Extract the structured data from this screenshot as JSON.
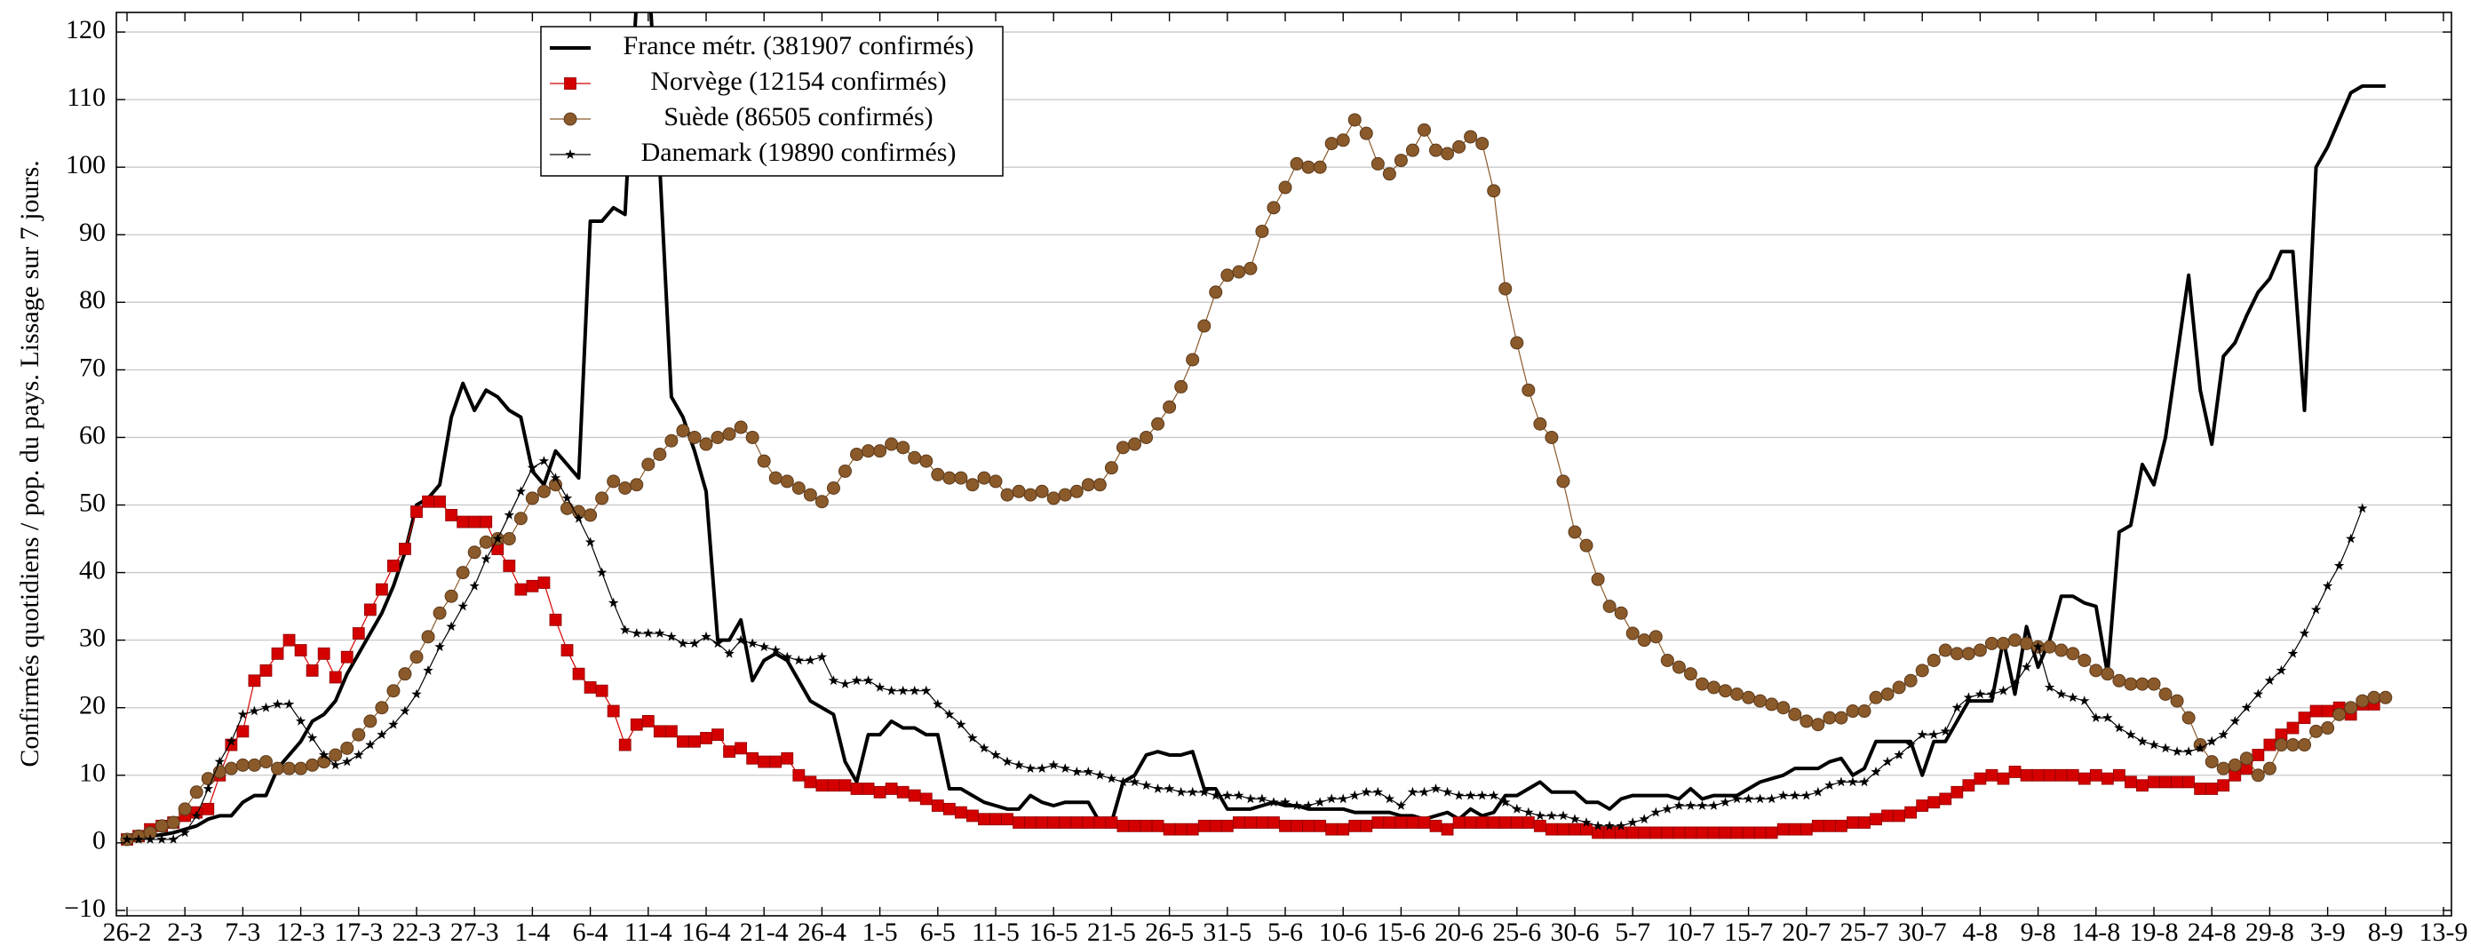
{
  "chart_data": {
    "type": "line",
    "y_label": "Confirmés quotidiens / pop. du pays. Lissage sur 7 jours.",
    "categories": [
      "26-2",
      null,
      null,
      null,
      null,
      "2-3",
      null,
      null,
      null,
      null,
      "7-3",
      null,
      null,
      null,
      null,
      "12-3",
      null,
      null,
      null,
      null,
      "17-3",
      null,
      null,
      null,
      null,
      "22-3",
      null,
      null,
      null,
      null,
      "27-3",
      null,
      null,
      null,
      null,
      "1-4",
      null,
      null,
      null,
      null,
      "6-4",
      null,
      null,
      null,
      null,
      "11-4",
      null,
      null,
      null,
      null,
      "16-4",
      null,
      null,
      null,
      null,
      "21-4",
      null,
      null,
      null,
      null,
      "26-4",
      null,
      null,
      null,
      null,
      "1-5",
      null,
      null,
      null,
      null,
      "6-5",
      null,
      null,
      null,
      null,
      "11-5",
      null,
      null,
      null,
      null,
      "16-5",
      null,
      null,
      null,
      null,
      "21-5",
      null,
      null,
      null,
      null,
      "26-5",
      null,
      null,
      null,
      null,
      "31-5",
      null,
      null,
      null,
      null,
      "5-6",
      null,
      null,
      null,
      null,
      "10-6",
      null,
      null,
      null,
      null,
      "15-6",
      null,
      null,
      null,
      null,
      "20-6",
      null,
      null,
      null,
      null,
      "25-6",
      null,
      null,
      null,
      null,
      "30-6",
      null,
      null,
      null,
      null,
      "5-7",
      null,
      null,
      null,
      null,
      "10-7",
      null,
      null,
      null,
      null,
      "15-7",
      null,
      null,
      null,
      null,
      "20-7",
      null,
      null,
      null,
      null,
      "25-7",
      null,
      null,
      null,
      null,
      "30-7",
      null,
      null,
      null,
      null,
      "4-8",
      null,
      null,
      null,
      null,
      "9-8",
      null,
      null,
      null,
      null,
      "14-8",
      null,
      null,
      null,
      null,
      "19-8",
      null,
      null,
      null,
      null,
      "24-8",
      null,
      null,
      null,
      null,
      "29-8",
      null,
      null,
      null,
      null,
      "3-9",
      null,
      null,
      null,
      null,
      "8-9",
      null,
      null,
      null,
      null,
      "13-9"
    ],
    "series": [
      {
        "name": "France métr. (381907 confirmés)",
        "color": "#000000",
        "marker": "none",
        "values": [
          0.5,
          0.7,
          1,
          1.2,
          1.5,
          2,
          2.5,
          3.5,
          4,
          4,
          6,
          7,
          7,
          11,
          13,
          15,
          18,
          19,
          21,
          25,
          28,
          31,
          34,
          38,
          43,
          50,
          51,
          53,
          63,
          68,
          64,
          67,
          66,
          64,
          63,
          55,
          53,
          58,
          56,
          54,
          92,
          92,
          94,
          93,
          125,
          130,
          100,
          66,
          63,
          58,
          52,
          30,
          30,
          33,
          24,
          27,
          28,
          27,
          24,
          21,
          20,
          19,
          12,
          9,
          16,
          16,
          18,
          17,
          17,
          16,
          16,
          8,
          8,
          7,
          6,
          5.5,
          5,
          5,
          7,
          6,
          5.5,
          6,
          6,
          6,
          3,
          3,
          9,
          10,
          13,
          13.5,
          13,
          13,
          13.5,
          8,
          8,
          5,
          5,
          5,
          5.5,
          6,
          5.5,
          5.5,
          5,
          5,
          5,
          5,
          4.5,
          4.5,
          4.5,
          4.5,
          4,
          4,
          3.5,
          4,
          4.5,
          3.5,
          5,
          4,
          4.5,
          7,
          7,
          8,
          9,
          7.5,
          7.5,
          7.5,
          6,
          6,
          5,
          6.5,
          7,
          7,
          7,
          7,
          6.5,
          8,
          6.5,
          7,
          7,
          7,
          8,
          9,
          9.5,
          10,
          11,
          11,
          11,
          12,
          12.5,
          10,
          11,
          15,
          15,
          15,
          15,
          10,
          15,
          15,
          18,
          21,
          21,
          21,
          30,
          22,
          32,
          26,
          30,
          36.5,
          36.5,
          35.5,
          35,
          25,
          46,
          47,
          56,
          53,
          60,
          72,
          84,
          67,
          59,
          72,
          74,
          78,
          81.5,
          83.5,
          87.5,
          87.5,
          64,
          100,
          103,
          107,
          111,
          112,
          112,
          112,
          null,
          null,
          null,
          null,
          null
        ]
      },
      {
        "name": "Norvège (12154 confirmés)",
        "color": "#d40000",
        "marker": "square",
        "values": [
          0.5,
          1,
          2,
          2.5,
          3,
          4,
          4.5,
          5,
          10,
          14.5,
          16.5,
          24,
          25.5,
          28,
          30,
          28.5,
          25.5,
          28,
          24.5,
          27.5,
          31,
          34.5,
          37.5,
          41,
          43.5,
          49,
          50.5,
          50.5,
          48.5,
          47.5,
          47.5,
          47.5,
          43.5,
          41,
          37.5,
          38,
          38.5,
          33,
          28.5,
          25,
          23,
          22.5,
          19.5,
          14.5,
          17.5,
          18,
          16.5,
          16.5,
          15,
          15,
          15.5,
          16,
          13.5,
          14,
          12.5,
          12,
          12,
          12.5,
          10,
          9,
          8.5,
          8.5,
          8.5,
          8,
          8,
          7.5,
          8,
          7.5,
          7,
          6.5,
          5.5,
          5,
          4.5,
          4,
          3.5,
          3.5,
          3.5,
          3,
          3,
          3,
          3,
          3,
          3,
          3,
          3,
          3,
          2.5,
          2.5,
          2.5,
          2.5,
          2,
          2,
          2,
          2.5,
          2.5,
          2.5,
          3,
          3,
          3,
          3,
          2.5,
          2.5,
          2.5,
          2.5,
          2,
          2,
          2.5,
          2.5,
          3,
          3,
          3,
          3,
          3,
          2.5,
          2,
          3,
          3,
          3,
          3,
          3,
          3,
          3,
          2.5,
          2,
          2,
          2,
          2,
          1.5,
          1.5,
          1.5,
          1.5,
          1.5,
          1.5,
          1.5,
          1.5,
          1.5,
          1.5,
          1.5,
          1.5,
          1.5,
          1.5,
          1.5,
          1.5,
          2,
          2,
          2,
          2.5,
          2.5,
          2.5,
          3,
          3,
          3.5,
          4,
          4,
          4.5,
          5.5,
          6,
          6.5,
          7.5,
          8.5,
          9.5,
          10,
          9.5,
          10.5,
          10,
          10,
          10,
          10,
          10,
          9.5,
          10,
          9.5,
          10,
          9,
          8.5,
          9,
          9,
          9,
          9,
          8,
          8,
          8.5,
          10,
          11,
          13,
          14.5,
          16,
          17,
          18.5,
          19.5,
          19.5,
          20,
          19,
          20.5,
          20.5,
          null,
          null,
          null,
          null,
          null,
          null
        ]
      },
      {
        "name": "Suède (86505 confirmés)",
        "color": "#8b5a2b",
        "marker": "circle",
        "values": [
          0.5,
          1,
          1.5,
          2.5,
          3,
          5,
          7.5,
          9.5,
          10.5,
          11,
          11.5,
          11.5,
          12,
          11,
          11,
          11,
          11.5,
          12,
          13,
          14,
          16,
          18,
          20,
          22.5,
          25,
          27.5,
          30.5,
          34,
          36.5,
          40,
          43,
          44.5,
          45,
          45,
          48,
          51,
          52,
          53,
          49.5,
          49,
          48.5,
          51,
          53.5,
          52.5,
          53,
          56,
          57.5,
          59.5,
          61,
          60,
          59,
          60,
          60.5,
          61.5,
          60,
          56.5,
          54,
          53.5,
          52.5,
          51.5,
          50.5,
          52.5,
          55,
          57.5,
          58,
          58,
          59,
          58.5,
          57,
          56.5,
          54.5,
          54,
          54,
          53,
          54,
          53.5,
          51.5,
          52,
          51.5,
          52,
          51,
          51.5,
          52,
          53,
          53,
          55.5,
          58.5,
          59,
          60,
          62,
          64.5,
          67.5,
          71.5,
          76.5,
          81.5,
          84,
          84.5,
          85,
          90.5,
          94,
          97,
          100.5,
          100,
          100,
          103.5,
          104,
          107,
          105,
          100.5,
          99,
          101,
          102.5,
          105.5,
          102.5,
          102,
          103,
          104.5,
          103.5,
          96.5,
          82,
          74,
          67,
          62,
          60,
          53.5,
          46,
          44,
          39,
          35,
          34,
          31,
          30,
          30.5,
          27,
          26,
          25,
          23.5,
          23,
          22.5,
          22,
          21.5,
          21,
          20.5,
          20,
          19,
          18,
          17.5,
          18.5,
          18.5,
          19.5,
          19.5,
          21.5,
          22,
          23,
          24,
          25.5,
          27,
          28.5,
          28,
          28,
          28.5,
          29.5,
          29.5,
          30,
          29.5,
          29,
          29,
          28.5,
          28,
          27,
          25.5,
          25,
          24,
          23.5,
          23.5,
          23.5,
          22,
          21,
          18.5,
          14.5,
          12,
          11,
          11.5,
          12.5,
          10,
          11,
          14.5,
          14.5,
          14.5,
          16.5,
          17,
          19,
          20,
          21,
          21.5,
          21.5,
          null,
          null,
          null,
          null,
          null
        ]
      },
      {
        "name": "Danemark (19890 confirmés)",
        "color": "#000000",
        "marker": "star",
        "values": [
          0.5,
          0.5,
          0.5,
          0.5,
          0.5,
          1.5,
          4,
          8,
          12,
          15,
          19,
          19.5,
          20,
          20.5,
          20.5,
          18,
          15.5,
          13,
          11.5,
          12,
          13,
          14.5,
          16,
          17.5,
          19.5,
          22,
          25.5,
          29,
          32,
          35,
          38,
          42,
          45,
          48.5,
          52,
          55.5,
          56.5,
          54,
          51,
          48,
          44.5,
          40,
          35.5,
          31.5,
          31,
          31,
          31,
          30.5,
          29.5,
          29.5,
          30.5,
          29.5,
          28,
          30,
          29.5,
          29,
          28.5,
          27.5,
          27,
          27,
          27.5,
          24,
          23.5,
          24,
          24,
          23,
          22.5,
          22.5,
          22.5,
          22.5,
          20.5,
          19,
          17.5,
          15.5,
          14,
          13,
          12,
          11.5,
          11,
          11,
          11.5,
          11,
          10.5,
          10.5,
          10,
          9.5,
          9,
          9,
          8.5,
          8,
          8,
          7.5,
          7.5,
          7.5,
          7,
          7,
          7,
          6.5,
          6.5,
          6,
          6,
          5.5,
          5.5,
          6,
          6.5,
          6.5,
          7,
          7.5,
          7.5,
          6.5,
          5.5,
          7.5,
          7.5,
          8,
          7.5,
          7,
          7,
          7,
          7,
          6,
          5,
          4.5,
          4,
          4,
          4,
          3.5,
          3,
          2.5,
          2.5,
          2.5,
          3,
          3.5,
          4.5,
          5,
          5.5,
          5.5,
          5.5,
          5.5,
          6,
          6.5,
          6.5,
          6.5,
          6.5,
          7,
          7,
          7,
          7.5,
          8.5,
          9,
          9,
          9,
          10.5,
          12,
          13,
          14.5,
          16,
          16,
          16.5,
          20,
          21.5,
          22,
          22,
          22.5,
          23.5,
          26,
          29,
          23,
          22,
          21.5,
          21,
          18.5,
          18.5,
          17,
          16,
          15,
          14.5,
          14,
          13.5,
          13.5,
          14,
          15,
          16,
          18,
          20,
          22,
          24,
          25.5,
          28,
          31,
          34.5,
          38,
          41,
          45,
          49.5,
          null,
          null,
          null,
          null,
          null,
          null,
          null
        ]
      }
    ],
    "ylim": [
      -10.8,
      122.9
    ],
    "yticks": [
      {
        "value": -10,
        "label": "−10"
      },
      0,
      10,
      20,
      30,
      40,
      50,
      60,
      70,
      80,
      90,
      100,
      110,
      120
    ],
    "grid": true,
    "legend": "upper-left"
  }
}
